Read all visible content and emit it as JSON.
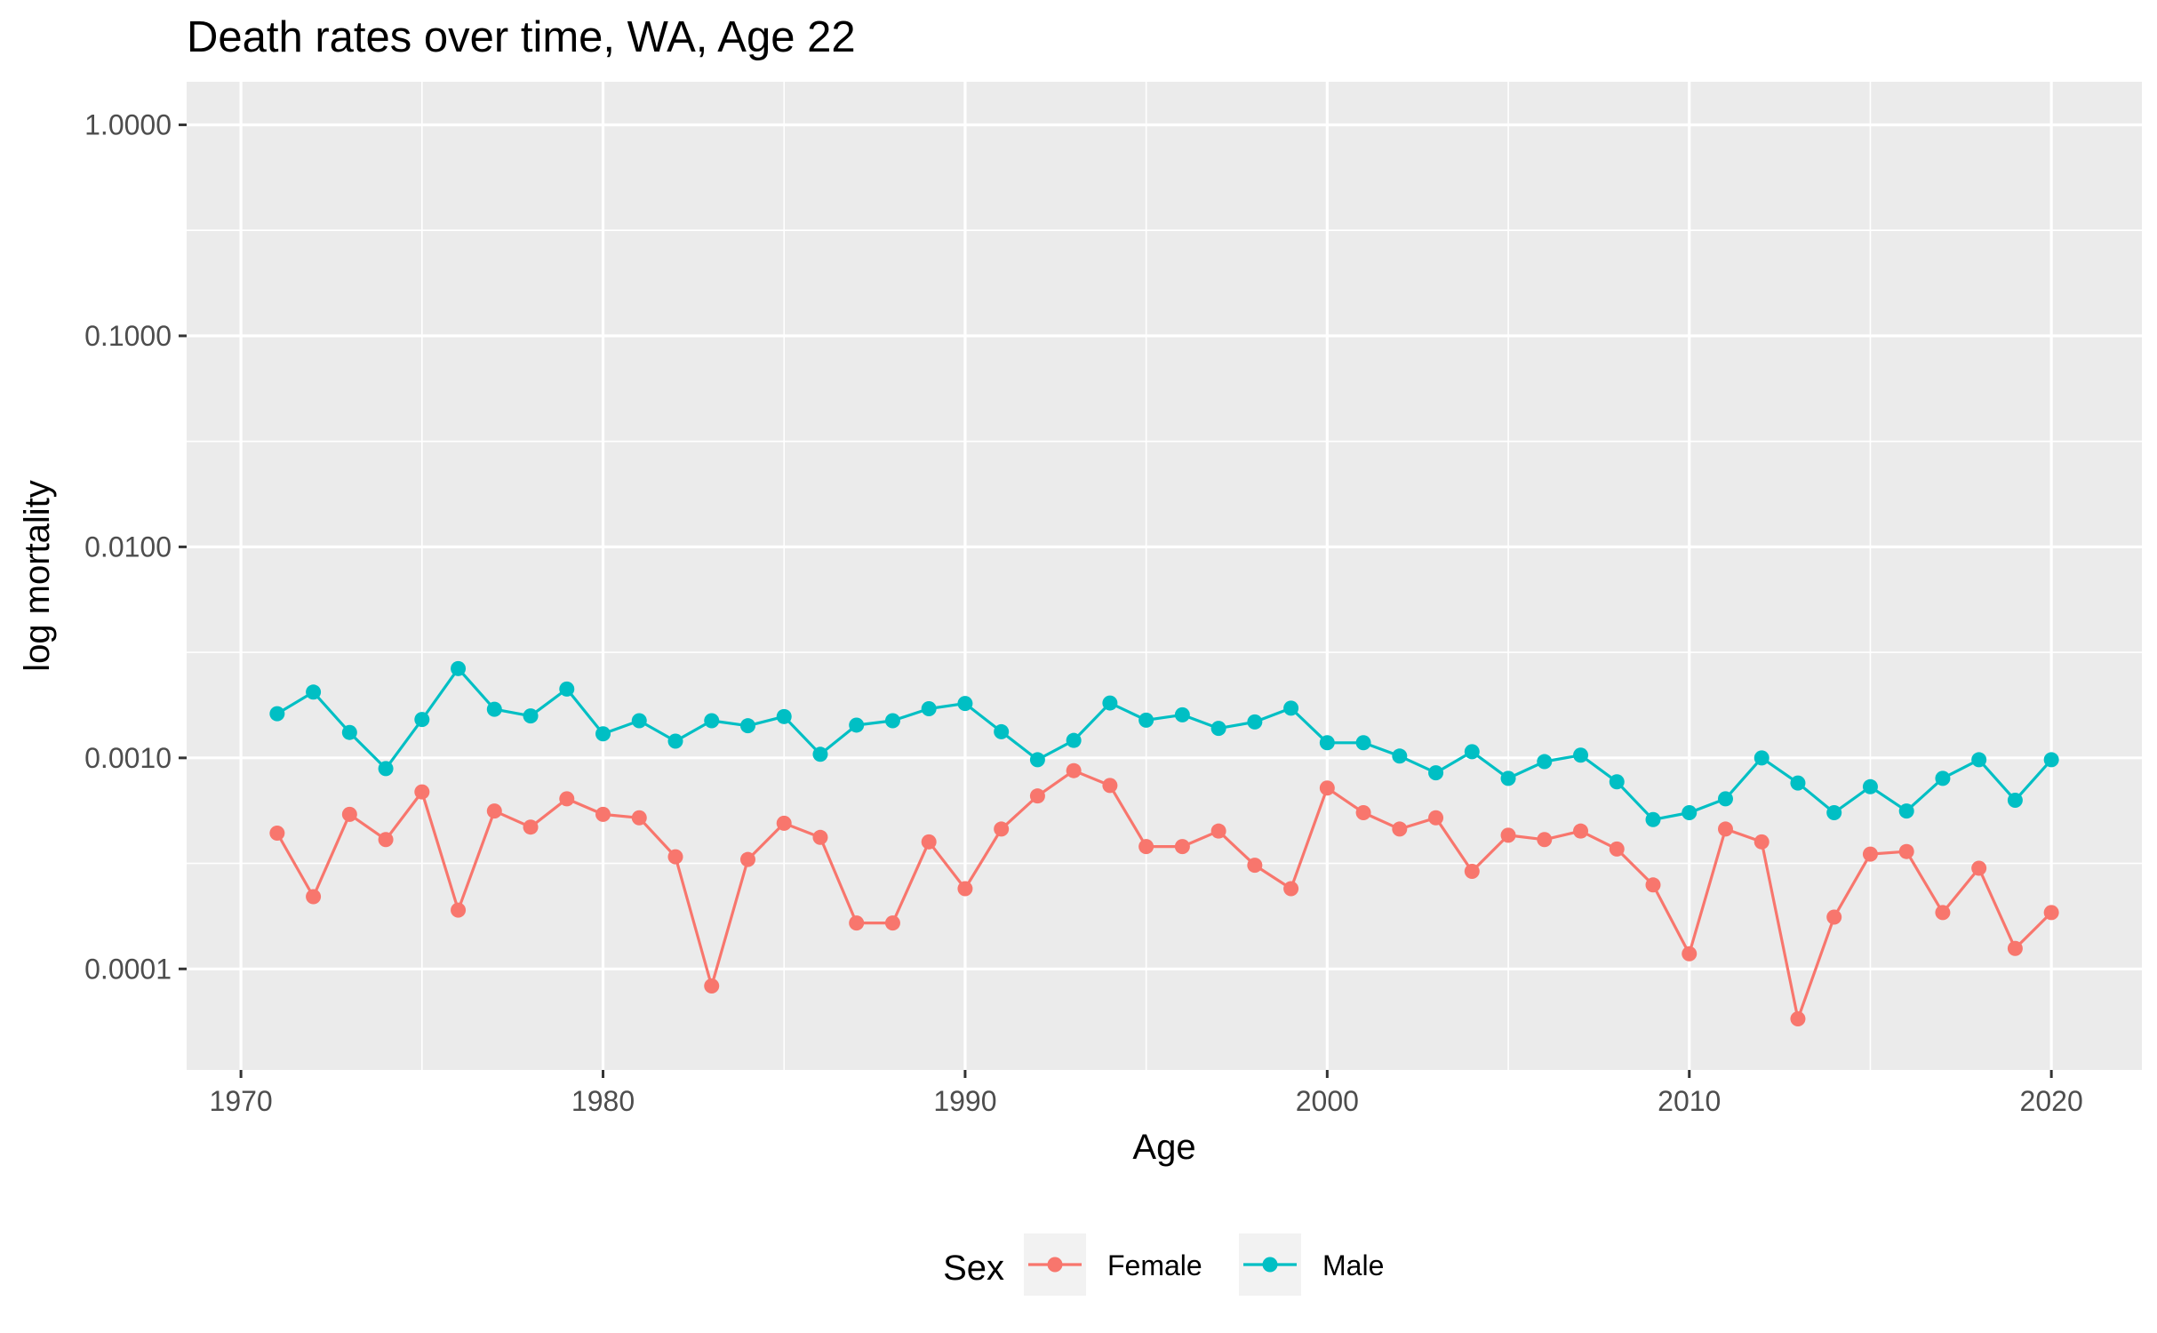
{
  "chart_data": {
    "type": "line",
    "title": "Death rates over time, WA, Age 22",
    "xlabel": "Age",
    "ylabel": "log mortality",
    "x_scale": "linear",
    "y_scale": "log10",
    "xlim": [
      1968.5,
      2022.5
    ],
    "ylim": [
      3.32e-05,
      1.6
    ],
    "x_ticks": [
      1970,
      1980,
      1990,
      2000,
      2010,
      2020
    ],
    "x_tick_labels": [
      "1970",
      "1980",
      "1990",
      "2000",
      "2010",
      "2020"
    ],
    "y_ticks": [
      0.0001,
      0.001,
      0.01,
      0.1,
      1
    ],
    "y_tick_labels": [
      "0.0001",
      "0.0010",
      "0.0100",
      "0.1000",
      "1.0000"
    ],
    "grid": true,
    "legend": {
      "title": "Sex",
      "position": "bottom"
    },
    "x": [
      1971,
      1972,
      1973,
      1974,
      1975,
      1976,
      1977,
      1978,
      1979,
      1980,
      1981,
      1982,
      1983,
      1984,
      1985,
      1986,
      1987,
      1988,
      1989,
      1990,
      1991,
      1992,
      1993,
      1994,
      1995,
      1996,
      1997,
      1998,
      1999,
      2000,
      2001,
      2002,
      2003,
      2004,
      2005,
      2006,
      2007,
      2008,
      2009,
      2010,
      2011,
      2012,
      2013,
      2014,
      2015,
      2016,
      2017,
      2018,
      2019,
      2020
    ],
    "series": [
      {
        "name": "Female",
        "color": "#F8766D",
        "values": [
          0.00044,
          0.00022,
          0.00054,
          0.00041,
          0.00069,
          0.00019,
          0.00056,
          0.00047,
          0.00064,
          0.00054,
          0.00052,
          0.00034,
          8.3e-05,
          0.00033,
          0.00049,
          0.00042,
          0.000165,
          0.000165,
          0.0004,
          0.00024,
          0.00046,
          0.00066,
          0.00087,
          0.00074,
          0.00038,
          0.00038,
          0.00045,
          0.00031,
          0.00024,
          0.00072,
          0.00055,
          0.00046,
          0.00052,
          0.00029,
          0.00043,
          0.00041,
          0.00045,
          0.00037,
          0.00025,
          0.000118,
          0.00046,
          0.0004,
          5.8e-05,
          0.000176,
          0.00035,
          0.00036,
          0.000185,
          0.0003,
          0.000125,
          0.000185
        ]
      },
      {
        "name": "Male",
        "color": "#00BFC4",
        "values": [
          0.00162,
          0.00205,
          0.00132,
          0.00089,
          0.00152,
          0.00265,
          0.0017,
          0.00158,
          0.00212,
          0.0013,
          0.0015,
          0.0012,
          0.0015,
          0.00142,
          0.00157,
          0.00104,
          0.00143,
          0.0015,
          0.00171,
          0.00181,
          0.00133,
          0.00098,
          0.00121,
          0.00182,
          0.00151,
          0.0016,
          0.00138,
          0.00148,
          0.00172,
          0.00118,
          0.00118,
          0.00102,
          0.00085,
          0.00107,
          0.0008,
          0.00096,
          0.00103,
          0.00077,
          0.00051,
          0.00055,
          0.00064,
          0.001,
          0.00076,
          0.00055,
          0.00073,
          0.00056,
          0.0008,
          0.00098,
          0.00063,
          0.00098
        ]
      }
    ]
  }
}
